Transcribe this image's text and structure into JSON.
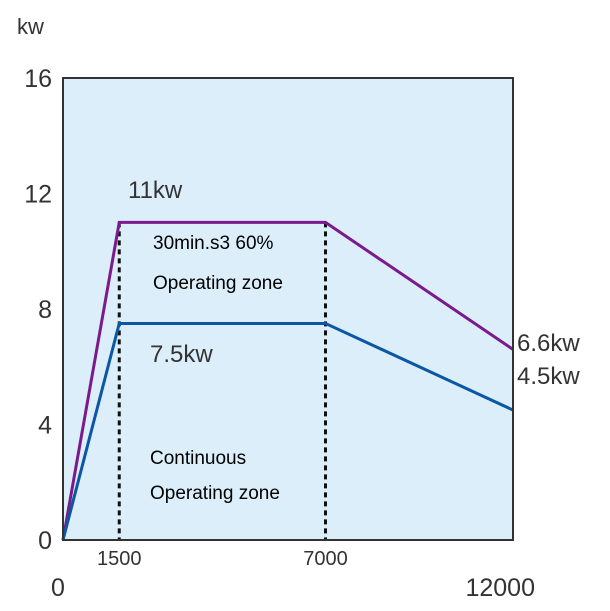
{
  "chart_data": {
    "type": "line",
    "unit_label": "kw",
    "xlim": [
      0,
      12000
    ],
    "ylim": [
      0,
      16
    ],
    "x_ticks": [
      "0",
      "12000"
    ],
    "x_marker_ticks": [
      "1500",
      "7000"
    ],
    "y_ticks": [
      "0",
      "4",
      "8",
      "12",
      "16"
    ],
    "grid": false,
    "plot_background": "#dbeefa",
    "series": [
      {
        "color": "#7b1a8c",
        "points": [
          [
            0,
            0
          ],
          [
            1500,
            11
          ],
          [
            7000,
            11
          ],
          [
            12000,
            6.6
          ]
        ]
      },
      {
        "color": "#0b57a4",
        "points": [
          [
            0,
            0
          ],
          [
            1500,
            7.5
          ],
          [
            7000,
            7.5
          ],
          [
            12000,
            4.5
          ]
        ]
      }
    ],
    "markers": [
      1500,
      7000
    ],
    "annotations": {
      "peak_top": "11kw",
      "peak_end": "6.6kw",
      "cont_top": "7.5kw",
      "cont_end": "4.5kw",
      "zone_s3_line1": "30min.s3 60%",
      "zone_s3_line2": "Operating zone",
      "zone_cont_line1": "Continuous",
      "zone_cont_line2": "Operating zone"
    }
  }
}
